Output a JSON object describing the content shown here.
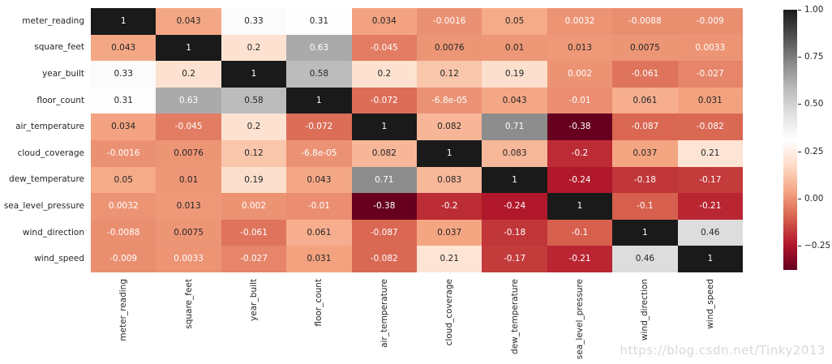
{
  "watermark": {
    "text": "https://blog.csdn.net/Tinky2013",
    "color": "#d8d8d8"
  },
  "chart_data": {
    "type": "heatmap",
    "categories": [
      "meter_reading",
      "square_feet",
      "year_built",
      "floor_count",
      "air_temperature",
      "cloud_coverage",
      "dew_temperature",
      "sea_level_pressure",
      "wind_direction",
      "wind_speed"
    ],
    "matrix": [
      [
        "1",
        "0.043",
        "0.33",
        "0.31",
        "0.034",
        "-0.0016",
        "0.05",
        "0.0032",
        "-0.0088",
        "-0.009"
      ],
      [
        "0.043",
        "1",
        "0.2",
        "0.63",
        "-0.045",
        "0.0076",
        "0.01",
        "0.013",
        "0.0075",
        "0.0033"
      ],
      [
        "0.33",
        "0.2",
        "1",
        "0.58",
        "0.2",
        "0.12",
        "0.19",
        "0.002",
        "-0.061",
        "-0.027"
      ],
      [
        "0.31",
        "0.63",
        "0.58",
        "1",
        "-0.072",
        "-6.8e-05",
        "0.043",
        "-0.01",
        "0.061",
        "0.031"
      ],
      [
        "0.034",
        "-0.045",
        "0.2",
        "-0.072",
        "1",
        "0.082",
        "0.71",
        "-0.38",
        "-0.087",
        "-0.082"
      ],
      [
        "-0.0016",
        "0.0076",
        "0.12",
        "-6.8e-05",
        "0.082",
        "1",
        "0.083",
        "-0.2",
        "0.037",
        "0.21"
      ],
      [
        "0.05",
        "0.01",
        "0.19",
        "0.043",
        "0.71",
        "0.083",
        "1",
        "-0.24",
        "-0.18",
        "-0.17"
      ],
      [
        "0.0032",
        "0.013",
        "0.002",
        "-0.01",
        "-0.38",
        "-0.2",
        "-0.24",
        "1",
        "-0.1",
        "-0.21"
      ],
      [
        "-0.0088",
        "0.0075",
        "-0.061",
        "0.061",
        "-0.087",
        "0.037",
        "-0.18",
        "-0.1",
        "1",
        "0.46"
      ],
      [
        "-0.009",
        "0.0033",
        "-0.027",
        "0.031",
        "-0.082",
        "0.21",
        "-0.17",
        "-0.21",
        "0.46",
        "1"
      ]
    ],
    "colormap": {
      "name": "RdGy",
      "anchors": [
        "#67001F",
        "#B2182B",
        "#D6604D",
        "#F4A582",
        "#FDDBC7",
        "#FFFFFF",
        "#E0E0E0",
        "#BABABA",
        "#878787",
        "#4D4D4D",
        "#1A1A1A"
      ],
      "vmin": -0.375,
      "vmax": 1.0
    },
    "annotation_colors": {
      "dark": "#262626",
      "light": "#ffffff",
      "luminance_threshold": 0.406
    },
    "colorbar": {
      "position": "right",
      "tick_labels": [
        "1.00",
        "0.75",
        "0.50",
        "0.25",
        "0.00",
        "−0.25"
      ],
      "tick_values": [
        1.0,
        0.75,
        0.5,
        0.25,
        0.0,
        -0.25
      ]
    }
  }
}
